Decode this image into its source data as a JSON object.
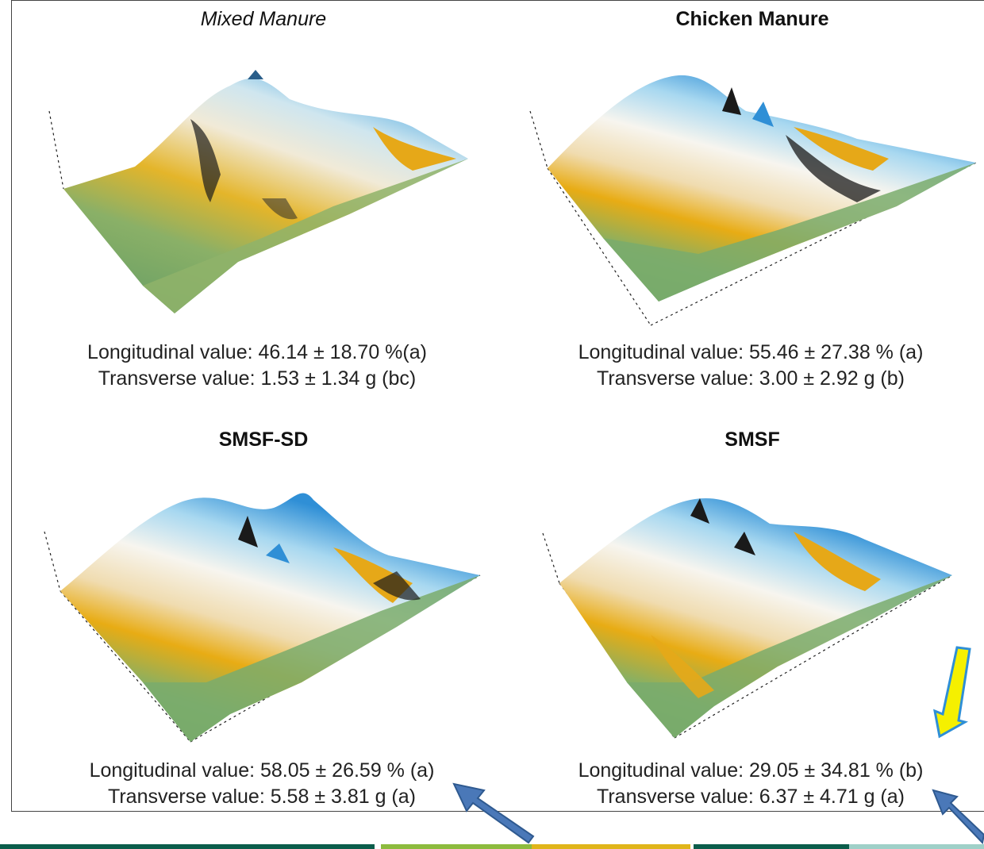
{
  "chart_data": [
    {
      "type": "surface",
      "title": "Mixed Manure",
      "stats": {
        "longitudinal": "Longitudinal value: 46.14 ± 18.70 %(a)",
        "transverse": "Transverse value: 1.53 ± 1.34 g (bc)"
      }
    },
    {
      "type": "surface",
      "title": "Chicken Manure",
      "stats": {
        "longitudinal": "Longitudinal value: 55.46 ± 27.38 % (a)",
        "transverse": "Transverse value: 3.00 ± 2.92 g (b)"
      }
    },
    {
      "type": "surface",
      "title": "SMSF-SD",
      "stats": {
        "longitudinal": "Longitudinal value: 58.05 ± 26.59 % (a)",
        "transverse": "Transverse value: 5.58 ± 3.81 g (a)"
      }
    },
    {
      "type": "surface",
      "title": "SMSF",
      "stats": {
        "longitudinal": "Longitudinal value: 29.05 ± 34.81 % (b)",
        "transverse": "Transverse value: 6.37 ± 4.71 g (a)"
      }
    }
  ],
  "colors": {
    "surface_green": "#6aa56a",
    "surface_gold": "#e6a818",
    "surface_cream": "#f3ead2",
    "surface_blue": "#2f8fd6",
    "surface_dark": "#1a1a1a",
    "arrow_blue": "#4a78b8",
    "arrow_yellow": "#f5f000",
    "bar_teal": "#0b5d4b",
    "bar_lime": "#8dbb3e",
    "bar_gold": "#e0b51a",
    "bar_light": "#9fd0c8"
  },
  "annotations": {
    "arrow_colors": [
      "blue",
      "yellow",
      "blue"
    ]
  }
}
